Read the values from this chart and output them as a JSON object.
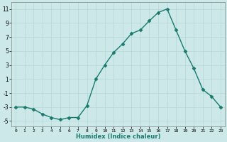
{
  "x": [
    0,
    1,
    2,
    3,
    4,
    5,
    6,
    7,
    8,
    9,
    10,
    11,
    12,
    13,
    14,
    15,
    16,
    17,
    18,
    19,
    20,
    21,
    22,
    23
  ],
  "y": [
    -3,
    -3,
    -3.3,
    -4,
    -4.5,
    -4.8,
    -4.5,
    -4.5,
    -2.8,
    1,
    3,
    4.8,
    6,
    7.5,
    8,
    9.3,
    10.5,
    11,
    8,
    5,
    2.5,
    -0.5,
    -1.5,
    -3
  ],
  "line_color": "#1a7a6e",
  "marker": "D",
  "marker_size": 2.5,
  "bg_color": "#cce8e8",
  "grid_color": "#b0d4d4",
  "xlabel": "Humidex (Indice chaleur)",
  "xlim": [
    -0.5,
    23.5
  ],
  "ylim": [
    -5.8,
    12
  ],
  "yticks": [
    -5,
    -3,
    -1,
    1,
    3,
    5,
    7,
    9,
    11
  ],
  "xticks": [
    0,
    1,
    2,
    3,
    4,
    5,
    6,
    7,
    8,
    9,
    10,
    11,
    12,
    13,
    14,
    15,
    16,
    17,
    18,
    19,
    20,
    21,
    22,
    23
  ]
}
